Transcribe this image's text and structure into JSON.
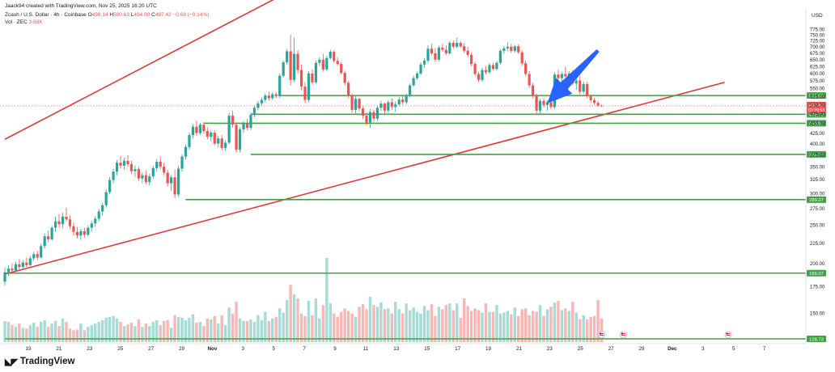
{
  "header": {
    "credit": "Jaack94 created with TradingView.com, Nov 25, 2025 16:20 UTC",
    "symbol": "Zcash / U.S. Dollar · 4h · Coinbase",
    "o_label": "O",
    "o": "498.14",
    "h_label": "H",
    "h": "500.63",
    "l_label": "L",
    "l": "494.00",
    "c_label": "C",
    "c": "497.42",
    "change": "−0.68 (−0.14%)",
    "vol_label": "Vol · ZEC",
    "vol_value": "3.93K"
  },
  "axis_unit": "USD",
  "brand": "TradingView",
  "colors": {
    "up": "#26a69a",
    "down": "#ef5350",
    "trend": "#e53935",
    "level": "#43a047",
    "arrow": "#2962ff"
  },
  "chart_data": {
    "type": "candlestick",
    "timeframe": "4h",
    "y_scale": "log",
    "ylim": [
      140,
      790
    ],
    "y_ticks": [
      150,
      175,
      200,
      225,
      250,
      275,
      300,
      325,
      350,
      375,
      400,
      425,
      450,
      475,
      500,
      525,
      550,
      575,
      600,
      625,
      650,
      675,
      700,
      725,
      750,
      775
    ],
    "x_ticks": [
      "19",
      "21",
      "23",
      "25",
      "27",
      "29",
      "Nov",
      "3",
      "5",
      "7",
      "9",
      "11",
      "13",
      "15",
      "17",
      "19",
      "21",
      "23",
      "25",
      "27",
      "29",
      "Dec",
      "3",
      "5",
      "7"
    ],
    "current_price": {
      "value": "497.42",
      "countdown": "03:39:53"
    },
    "horizontal_levels": [
      {
        "label": "528.08",
        "value": 528.08,
        "from_index": 76
      },
      {
        "label": "473.70",
        "value": 473.7,
        "from_index": 68
      },
      {
        "label": "449.87",
        "value": 449.87,
        "from_index": 55
      },
      {
        "label": "375.74",
        "value": 375.74,
        "from_index": 68
      },
      {
        "label": "289.27",
        "value": 289.27,
        "from_index": 50
      },
      {
        "label": "189.07",
        "value": 189.07,
        "from_index": 0
      },
      {
        "label": "128.73",
        "value": 128.73,
        "from_index": 0
      }
    ],
    "trendlines": [
      {
        "name": "upper",
        "from": [
          0,
          410
        ],
        "to": [
          94,
          1140
        ]
      },
      {
        "name": "lower",
        "from": [
          0,
          188
        ],
        "to": [
          199,
          570
        ]
      }
    ],
    "annotation": {
      "type": "arrow",
      "from": [
        164,
        685
      ],
      "to": [
        150,
        505
      ]
    },
    "candles": [
      {
        "o": 180,
        "h": 195,
        "l": 176,
        "c": 190
      },
      {
        "o": 190,
        "h": 198,
        "l": 186,
        "c": 194
      },
      {
        "o": 194,
        "h": 200,
        "l": 189,
        "c": 192
      },
      {
        "o": 192,
        "h": 202,
        "l": 190,
        "c": 199
      },
      {
        "o": 199,
        "h": 205,
        "l": 193,
        "c": 196
      },
      {
        "o": 196,
        "h": 204,
        "l": 194,
        "c": 201
      },
      {
        "o": 201,
        "h": 207,
        "l": 196,
        "c": 198
      },
      {
        "o": 198,
        "h": 209,
        "l": 197,
        "c": 206
      },
      {
        "o": 206,
        "h": 214,
        "l": 203,
        "c": 211
      },
      {
        "o": 211,
        "h": 215,
        "l": 204,
        "c": 207
      },
      {
        "o": 207,
        "h": 224,
        "l": 206,
        "c": 221
      },
      {
        "o": 221,
        "h": 238,
        "l": 218,
        "c": 234
      },
      {
        "o": 234,
        "h": 242,
        "l": 226,
        "c": 230
      },
      {
        "o": 230,
        "h": 249,
        "l": 228,
        "c": 246
      },
      {
        "o": 246,
        "h": 262,
        "l": 240,
        "c": 255
      },
      {
        "o": 255,
        "h": 266,
        "l": 246,
        "c": 251
      },
      {
        "o": 251,
        "h": 268,
        "l": 245,
        "c": 262
      },
      {
        "o": 262,
        "h": 276,
        "l": 255,
        "c": 258
      },
      {
        "o": 258,
        "h": 264,
        "l": 244,
        "c": 248
      },
      {
        "o": 248,
        "h": 254,
        "l": 235,
        "c": 240
      },
      {
        "o": 240,
        "h": 247,
        "l": 231,
        "c": 235
      },
      {
        "o": 235,
        "h": 244,
        "l": 229,
        "c": 241
      },
      {
        "o": 241,
        "h": 246,
        "l": 232,
        "c": 236
      },
      {
        "o": 236,
        "h": 249,
        "l": 234,
        "c": 246
      },
      {
        "o": 246,
        "h": 256,
        "l": 240,
        "c": 252
      },
      {
        "o": 252,
        "h": 263,
        "l": 247,
        "c": 259
      },
      {
        "o": 259,
        "h": 274,
        "l": 255,
        "c": 270
      },
      {
        "o": 270,
        "h": 284,
        "l": 264,
        "c": 280
      },
      {
        "o": 280,
        "h": 307,
        "l": 276,
        "c": 302
      },
      {
        "o": 302,
        "h": 330,
        "l": 298,
        "c": 324
      },
      {
        "o": 324,
        "h": 346,
        "l": 318,
        "c": 340
      },
      {
        "o": 340,
        "h": 364,
        "l": 333,
        "c": 358
      },
      {
        "o": 358,
        "h": 372,
        "l": 346,
        "c": 352
      },
      {
        "o": 352,
        "h": 368,
        "l": 344,
        "c": 362
      },
      {
        "o": 362,
        "h": 374,
        "l": 350,
        "c": 355
      },
      {
        "o": 355,
        "h": 362,
        "l": 336,
        "c": 341
      },
      {
        "o": 341,
        "h": 352,
        "l": 330,
        "c": 345
      },
      {
        "o": 345,
        "h": 350,
        "l": 322,
        "c": 327
      },
      {
        "o": 327,
        "h": 338,
        "l": 318,
        "c": 333
      },
      {
        "o": 333,
        "h": 342,
        "l": 316,
        "c": 320
      },
      {
        "o": 320,
        "h": 336,
        "l": 314,
        "c": 331
      },
      {
        "o": 331,
        "h": 352,
        "l": 326,
        "c": 347
      },
      {
        "o": 347,
        "h": 366,
        "l": 340,
        "c": 360
      },
      {
        "o": 360,
        "h": 372,
        "l": 345,
        "c": 350
      },
      {
        "o": 350,
        "h": 358,
        "l": 333,
        "c": 338
      },
      {
        "o": 338,
        "h": 344,
        "l": 312,
        "c": 318
      },
      {
        "o": 318,
        "h": 333,
        "l": 304,
        "c": 329
      },
      {
        "o": 329,
        "h": 344,
        "l": 292,
        "c": 298
      },
      {
        "o": 298,
        "h": 352,
        "l": 294,
        "c": 346
      },
      {
        "o": 346,
        "h": 376,
        "l": 340,
        "c": 371
      },
      {
        "o": 371,
        "h": 398,
        "l": 365,
        "c": 392
      },
      {
        "o": 392,
        "h": 426,
        "l": 386,
        "c": 420
      },
      {
        "o": 420,
        "h": 448,
        "l": 412,
        "c": 441
      },
      {
        "o": 441,
        "h": 456,
        "l": 418,
        "c": 425
      },
      {
        "o": 425,
        "h": 451,
        "l": 420,
        "c": 446
      },
      {
        "o": 446,
        "h": 453,
        "l": 424,
        "c": 430
      },
      {
        "o": 430,
        "h": 440,
        "l": 410,
        "c": 416
      },
      {
        "o": 416,
        "h": 431,
        "l": 405,
        "c": 426
      },
      {
        "o": 426,
        "h": 432,
        "l": 396,
        "c": 400
      },
      {
        "o": 400,
        "h": 418,
        "l": 392,
        "c": 412
      },
      {
        "o": 412,
        "h": 420,
        "l": 385,
        "c": 390
      },
      {
        "o": 390,
        "h": 408,
        "l": 383,
        "c": 402
      },
      {
        "o": 402,
        "h": 478,
        "l": 398,
        "c": 470
      },
      {
        "o": 470,
        "h": 484,
        "l": 438,
        "c": 446
      },
      {
        "o": 446,
        "h": 452,
        "l": 380,
        "c": 386
      },
      {
        "o": 386,
        "h": 440,
        "l": 380,
        "c": 434
      },
      {
        "o": 434,
        "h": 456,
        "l": 425,
        "c": 449
      },
      {
        "o": 449,
        "h": 462,
        "l": 432,
        "c": 438
      },
      {
        "o": 438,
        "h": 478,
        "l": 433,
        "c": 472
      },
      {
        "o": 472,
        "h": 498,
        "l": 466,
        "c": 492
      },
      {
        "o": 492,
        "h": 512,
        "l": 485,
        "c": 505
      },
      {
        "o": 505,
        "h": 522,
        "l": 498,
        "c": 515
      },
      {
        "o": 515,
        "h": 535,
        "l": 508,
        "c": 528
      },
      {
        "o": 528,
        "h": 540,
        "l": 513,
        "c": 520
      },
      {
        "o": 520,
        "h": 538,
        "l": 515,
        "c": 532
      },
      {
        "o": 532,
        "h": 538,
        "l": 520,
        "c": 526
      },
      {
        "o": 526,
        "h": 600,
        "l": 520,
        "c": 592
      },
      {
        "o": 592,
        "h": 646,
        "l": 585,
        "c": 640
      },
      {
        "o": 640,
        "h": 690,
        "l": 632,
        "c": 682
      },
      {
        "o": 682,
        "h": 750,
        "l": 560,
        "c": 578
      },
      {
        "o": 578,
        "h": 740,
        "l": 570,
        "c": 672
      },
      {
        "o": 672,
        "h": 686,
        "l": 600,
        "c": 612
      },
      {
        "o": 612,
        "h": 632,
        "l": 545,
        "c": 556
      },
      {
        "o": 556,
        "h": 570,
        "l": 505,
        "c": 515
      },
      {
        "o": 515,
        "h": 608,
        "l": 508,
        "c": 600
      },
      {
        "o": 600,
        "h": 614,
        "l": 562,
        "c": 570
      },
      {
        "o": 570,
        "h": 646,
        "l": 565,
        "c": 638
      },
      {
        "o": 638,
        "h": 660,
        "l": 626,
        "c": 650
      },
      {
        "o": 650,
        "h": 672,
        "l": 606,
        "c": 614
      },
      {
        "o": 614,
        "h": 664,
        "l": 608,
        "c": 656
      },
      {
        "o": 656,
        "h": 688,
        "l": 650,
        "c": 680
      },
      {
        "o": 680,
        "h": 686,
        "l": 638,
        "c": 645
      },
      {
        "o": 645,
        "h": 660,
        "l": 628,
        "c": 634
      },
      {
        "o": 634,
        "h": 640,
        "l": 596,
        "c": 602
      },
      {
        "o": 602,
        "h": 610,
        "l": 560,
        "c": 568
      },
      {
        "o": 568,
        "h": 574,
        "l": 520,
        "c": 528
      },
      {
        "o": 528,
        "h": 534,
        "l": 478,
        "c": 486
      },
      {
        "o": 486,
        "h": 526,
        "l": 476,
        "c": 518
      },
      {
        "o": 518,
        "h": 522,
        "l": 482,
        "c": 490
      },
      {
        "o": 490,
        "h": 496,
        "l": 462,
        "c": 470
      },
      {
        "o": 470,
        "h": 478,
        "l": 444,
        "c": 452
      },
      {
        "o": 452,
        "h": 488,
        "l": 438,
        "c": 480
      },
      {
        "o": 480,
        "h": 486,
        "l": 454,
        "c": 462
      },
      {
        "o": 462,
        "h": 498,
        "l": 456,
        "c": 492
      },
      {
        "o": 492,
        "h": 512,
        "l": 484,
        "c": 504
      },
      {
        "o": 504,
        "h": 508,
        "l": 476,
        "c": 484
      },
      {
        "o": 484,
        "h": 514,
        "l": 478,
        "c": 508
      },
      {
        "o": 508,
        "h": 520,
        "l": 486,
        "c": 494
      },
      {
        "o": 494,
        "h": 510,
        "l": 480,
        "c": 502
      },
      {
        "o": 502,
        "h": 524,
        "l": 496,
        "c": 516
      },
      {
        "o": 516,
        "h": 530,
        "l": 500,
        "c": 508
      },
      {
        "o": 508,
        "h": 534,
        "l": 502,
        "c": 528
      },
      {
        "o": 528,
        "h": 566,
        "l": 522,
        "c": 560
      },
      {
        "o": 560,
        "h": 592,
        "l": 555,
        "c": 584
      },
      {
        "o": 584,
        "h": 606,
        "l": 578,
        "c": 600
      },
      {
        "o": 600,
        "h": 640,
        "l": 594,
        "c": 632
      },
      {
        "o": 632,
        "h": 656,
        "l": 620,
        "c": 646
      },
      {
        "o": 646,
        "h": 706,
        "l": 638,
        "c": 692
      },
      {
        "o": 692,
        "h": 712,
        "l": 666,
        "c": 674
      },
      {
        "o": 674,
        "h": 694,
        "l": 640,
        "c": 650
      },
      {
        "o": 650,
        "h": 704,
        "l": 644,
        "c": 696
      },
      {
        "o": 696,
        "h": 712,
        "l": 680,
        "c": 688
      },
      {
        "o": 688,
        "h": 706,
        "l": 666,
        "c": 674
      },
      {
        "o": 674,
        "h": 724,
        "l": 668,
        "c": 716
      },
      {
        "o": 716,
        "h": 726,
        "l": 692,
        "c": 700
      },
      {
        "o": 700,
        "h": 738,
        "l": 694,
        "c": 716
      },
      {
        "o": 716,
        "h": 724,
        "l": 696,
        "c": 702
      },
      {
        "o": 702,
        "h": 716,
        "l": 676,
        "c": 684
      },
      {
        "o": 684,
        "h": 700,
        "l": 660,
        "c": 668
      },
      {
        "o": 668,
        "h": 678,
        "l": 626,
        "c": 634
      },
      {
        "o": 634,
        "h": 642,
        "l": 592,
        "c": 598
      },
      {
        "o": 598,
        "h": 606,
        "l": 570,
        "c": 578
      },
      {
        "o": 578,
        "h": 620,
        "l": 572,
        "c": 612
      },
      {
        "o": 612,
        "h": 626,
        "l": 596,
        "c": 604
      },
      {
        "o": 604,
        "h": 638,
        "l": 598,
        "c": 630
      },
      {
        "o": 630,
        "h": 638,
        "l": 610,
        "c": 616
      },
      {
        "o": 616,
        "h": 644,
        "l": 610,
        "c": 638
      },
      {
        "o": 638,
        "h": 690,
        "l": 632,
        "c": 684
      },
      {
        "o": 684,
        "h": 704,
        "l": 672,
        "c": 694
      },
      {
        "o": 694,
        "h": 718,
        "l": 682,
        "c": 700
      },
      {
        "o": 700,
        "h": 712,
        "l": 676,
        "c": 684
      },
      {
        "o": 684,
        "h": 708,
        "l": 678,
        "c": 702
      },
      {
        "o": 702,
        "h": 710,
        "l": 672,
        "c": 678
      },
      {
        "o": 678,
        "h": 686,
        "l": 628,
        "c": 636
      },
      {
        "o": 636,
        "h": 646,
        "l": 590,
        "c": 598
      },
      {
        "o": 598,
        "h": 608,
        "l": 552,
        "c": 560
      },
      {
        "o": 560,
        "h": 568,
        "l": 520,
        "c": 526
      },
      {
        "o": 526,
        "h": 534,
        "l": 476,
        "c": 484
      },
      {
        "o": 484,
        "h": 518,
        "l": 476,
        "c": 512
      },
      {
        "o": 512,
        "h": 520,
        "l": 492,
        "c": 500
      },
      {
        "o": 500,
        "h": 514,
        "l": 484,
        "c": 508
      },
      {
        "o": 508,
        "h": 516,
        "l": 488,
        "c": 494
      },
      {
        "o": 494,
        "h": 604,
        "l": 490,
        "c": 596
      },
      {
        "o": 596,
        "h": 614,
        "l": 574,
        "c": 584
      },
      {
        "o": 584,
        "h": 606,
        "l": 572,
        "c": 598
      },
      {
        "o": 598,
        "h": 624,
        "l": 586,
        "c": 590
      },
      {
        "o": 590,
        "h": 608,
        "l": 578,
        "c": 600
      },
      {
        "o": 600,
        "h": 612,
        "l": 560,
        "c": 566
      },
      {
        "o": 566,
        "h": 584,
        "l": 546,
        "c": 576
      },
      {
        "o": 576,
        "h": 592,
        "l": 532,
        "c": 540
      },
      {
        "o": 540,
        "h": 572,
        "l": 534,
        "c": 564
      },
      {
        "o": 564,
        "h": 572,
        "l": 520,
        "c": 526
      },
      {
        "o": 526,
        "h": 532,
        "l": 508,
        "c": 514
      },
      {
        "o": 514,
        "h": 522,
        "l": 500,
        "c": 506
      },
      {
        "o": 506,
        "h": 512,
        "l": 494,
        "c": 498
      },
      {
        "o": 498.14,
        "h": 500.63,
        "l": 494,
        "c": 497.42
      }
    ],
    "volume_max": 5,
    "volumes": [
      1.25,
      1.2,
      1.0,
      0.9,
      1.1,
      0.85,
      0.8,
      1.0,
      1.15,
      0.9,
      1.2,
      1.3,
      0.9,
      1.1,
      1.25,
      0.95,
      1.4,
      1.2,
      0.8,
      0.7,
      0.75,
      1.1,
      0.7,
      0.9,
      1.0,
      1.1,
      1.2,
      1.3,
      1.45,
      1.5,
      1.55,
      1.4,
      1.2,
      0.95,
      1.05,
      1.15,
      0.95,
      1.35,
      0.9,
      1.1,
      0.95,
      1.2,
      1.3,
      1.0,
      1.25,
      1.3,
      0.85,
      1.6,
      1.5,
      1.45,
      1.3,
      1.45,
      1.65,
      1.15,
      1.2,
      0.95,
      1.4,
      1.35,
      1.55,
      1.1,
      1.6,
      1.0,
      2.05,
      1.7,
      2.4,
      1.4,
      1.25,
      1.25,
      1.35,
      1.2,
      1.6,
      1.3,
      1.8,
      1.25,
      1.4,
      1.5,
      2.0,
      1.75,
      2.5,
      3.4,
      2.85,
      2.6,
      1.7,
      1.55,
      2.45,
      1.6,
      2.6,
      1.4,
      2.2,
      5.0,
      2.3,
      1.7,
      1.5,
      1.8,
      2.0,
      1.85,
      1.7,
      1.5,
      2.1,
      2.25,
      1.95,
      2.7,
      2.2,
      2.1,
      2.35,
      1.95,
      2.0,
      1.7,
      2.4,
      1.95,
      1.7,
      2.3,
      1.9,
      2.05,
      1.8,
      1.7,
      2.15,
      1.9,
      2.25,
      1.55,
      2.1,
      1.95,
      2.2,
      2.3,
      1.9,
      2.3,
      1.45,
      2.6,
      2.15,
      1.85,
      2.0,
      1.9,
      1.75,
      2.3,
      1.8,
      1.8,
      2.2,
      1.7,
      1.75,
      1.85,
      1.65,
      2.05,
      1.55,
      1.95,
      2.0,
      1.6,
      1.85,
      1.8,
      2.2,
      1.55,
      1.95,
      2.1,
      2.35,
      2.45,
      1.9,
      2.0,
      1.85,
      2.4,
      1.75,
      1.35,
      1.6,
      1.35,
      1.5,
      1.55,
      2.5,
      1.4,
      1.65,
      1.45,
      1.35,
      1.15,
      0.9,
      1.05,
      1.2,
      1.0,
      0.95,
      0.6
    ],
    "events": [
      {
        "name": "flag-icon",
        "index": 165
      },
      {
        "name": "flag-icon",
        "index": 171
      },
      {
        "name": "flag-icon",
        "index": 200
      }
    ]
  }
}
